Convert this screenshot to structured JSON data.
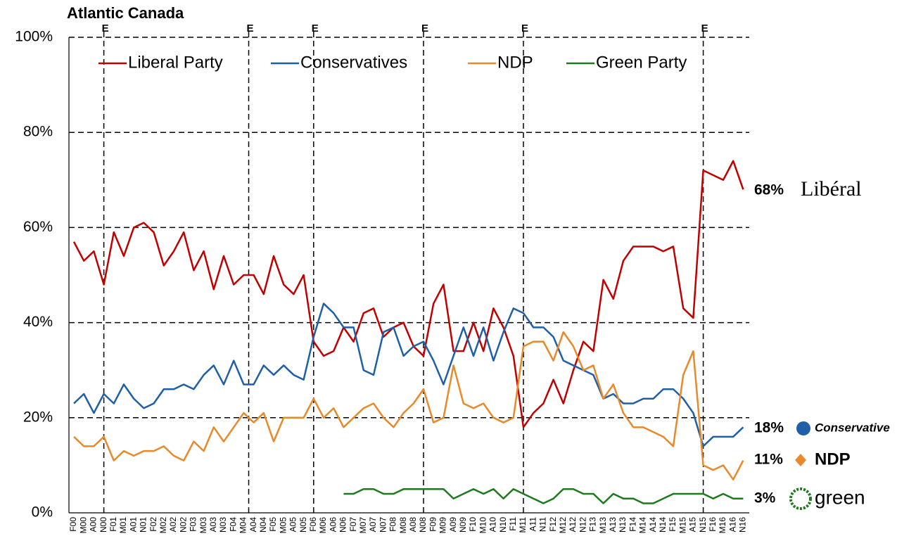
{
  "chart_data": {
    "type": "line",
    "title": "Atlantic Canada",
    "categories": [
      "F00",
      "M00",
      "A00",
      "N00",
      "F01",
      "M01",
      "A01",
      "N01",
      "F02",
      "M02",
      "A02",
      "N02",
      "F03",
      "M03",
      "A03",
      "N03",
      "F04",
      "M04",
      "A04",
      "N04",
      "F05",
      "M05",
      "A05",
      "N05",
      "F06",
      "M06",
      "A06",
      "N06",
      "F07",
      "M07",
      "A07",
      "N07",
      "F08",
      "M08",
      "A08",
      "N08",
      "F09",
      "M09",
      "A09",
      "N09",
      "F10",
      "M10",
      "A10",
      "N10",
      "F11",
      "M11",
      "A11",
      "N11",
      "F12",
      "M12",
      "A12",
      "N12",
      "F13",
      "M13",
      "A13",
      "N13",
      "F14",
      "M14",
      "A14",
      "N14",
      "F15",
      "M15",
      "A15",
      "N15",
      "F16",
      "M16",
      "A16",
      "N16"
    ],
    "series": [
      {
        "name": "Liberal Party",
        "color": "#c00000",
        "end_label": "68%",
        "logo": "Libéral",
        "values": [
          57,
          53,
          55,
          48,
          59,
          54,
          60,
          61,
          59,
          52,
          55,
          59,
          51,
          55,
          47,
          54,
          48,
          50,
          50,
          46,
          54,
          48,
          46,
          50,
          36,
          33,
          34,
          39,
          36,
          42,
          43,
          37,
          39,
          40,
          35,
          33,
          44,
          48,
          34,
          34,
          40,
          34,
          43,
          39,
          33,
          18,
          21,
          23,
          28,
          23,
          30,
          36,
          34,
          49,
          45,
          53,
          56,
          56,
          56,
          55,
          56,
          43,
          41,
          72,
          71,
          70,
          74,
          68
        ]
      },
      {
        "name": "Conservatives",
        "color": "#1f5fa8",
        "end_label": "18%",
        "logo": "Conservative",
        "values": [
          23,
          25,
          21,
          25,
          23,
          27,
          24,
          22,
          23,
          26,
          26,
          27,
          26,
          29,
          31,
          27,
          32,
          27,
          27,
          31,
          29,
          31,
          29,
          28,
          37,
          44,
          42,
          39,
          39,
          30,
          29,
          38,
          39,
          33,
          35,
          36,
          32,
          27,
          33,
          39,
          33,
          39,
          32,
          38,
          43,
          42,
          39,
          39,
          37,
          32,
          31,
          30,
          29,
          24,
          25,
          23,
          23,
          24,
          24,
          26,
          26,
          24,
          21,
          14,
          16,
          16,
          16,
          18
        ]
      },
      {
        "name": "NDP",
        "color": "#e8892a",
        "end_label": "11%",
        "logo": "NDP",
        "values": [
          16,
          14,
          14,
          16,
          11,
          13,
          12,
          13,
          13,
          14,
          12,
          11,
          15,
          13,
          18,
          15,
          18,
          21,
          19,
          21,
          15,
          20,
          20,
          20,
          24,
          20,
          22,
          18,
          20,
          22,
          23,
          20,
          18,
          21,
          23,
          26,
          19,
          20,
          31,
          23,
          22,
          23,
          20,
          19,
          20,
          35,
          36,
          36,
          32,
          38,
          35,
          30,
          31,
          24,
          27,
          21,
          18,
          18,
          17,
          16,
          14,
          29,
          34,
          10,
          9,
          10,
          7,
          11
        ]
      },
      {
        "name": "Green Party",
        "color": "#1e7a1e",
        "end_label": "3%",
        "logo": "green",
        "values": [
          null,
          null,
          null,
          null,
          null,
          null,
          null,
          null,
          null,
          null,
          null,
          null,
          null,
          null,
          null,
          null,
          null,
          null,
          null,
          null,
          null,
          null,
          null,
          null,
          null,
          null,
          null,
          4,
          4,
          5,
          5,
          4,
          4,
          5,
          5,
          5,
          5,
          5,
          3,
          4,
          5,
          4,
          5,
          3,
          5,
          4,
          3,
          2,
          3,
          5,
          5,
          4,
          4,
          2,
          4,
          3,
          3,
          2,
          2,
          3,
          4,
          4,
          4,
          4,
          3,
          4,
          3,
          3
        ]
      }
    ],
    "elections": [
      {
        "label": "E",
        "x": 3
      },
      {
        "label": "E",
        "x": 17.5
      },
      {
        "label": "E",
        "x": 24
      },
      {
        "label": "E",
        "x": 35
      },
      {
        "label": "E",
        "x": 45
      },
      {
        "label": "E",
        "x": 63
      }
    ],
    "ylim": [
      0,
      100
    ],
    "yticks": [
      {
        "value": 0,
        "label": "0%"
      },
      {
        "value": 20,
        "label": "20%"
      },
      {
        "value": 40,
        "label": "40%"
      },
      {
        "value": 60,
        "label": "60%"
      },
      {
        "value": 80,
        "label": "80%"
      },
      {
        "value": 100,
        "label": "100%"
      }
    ],
    "grid": true,
    "legend": "top"
  }
}
